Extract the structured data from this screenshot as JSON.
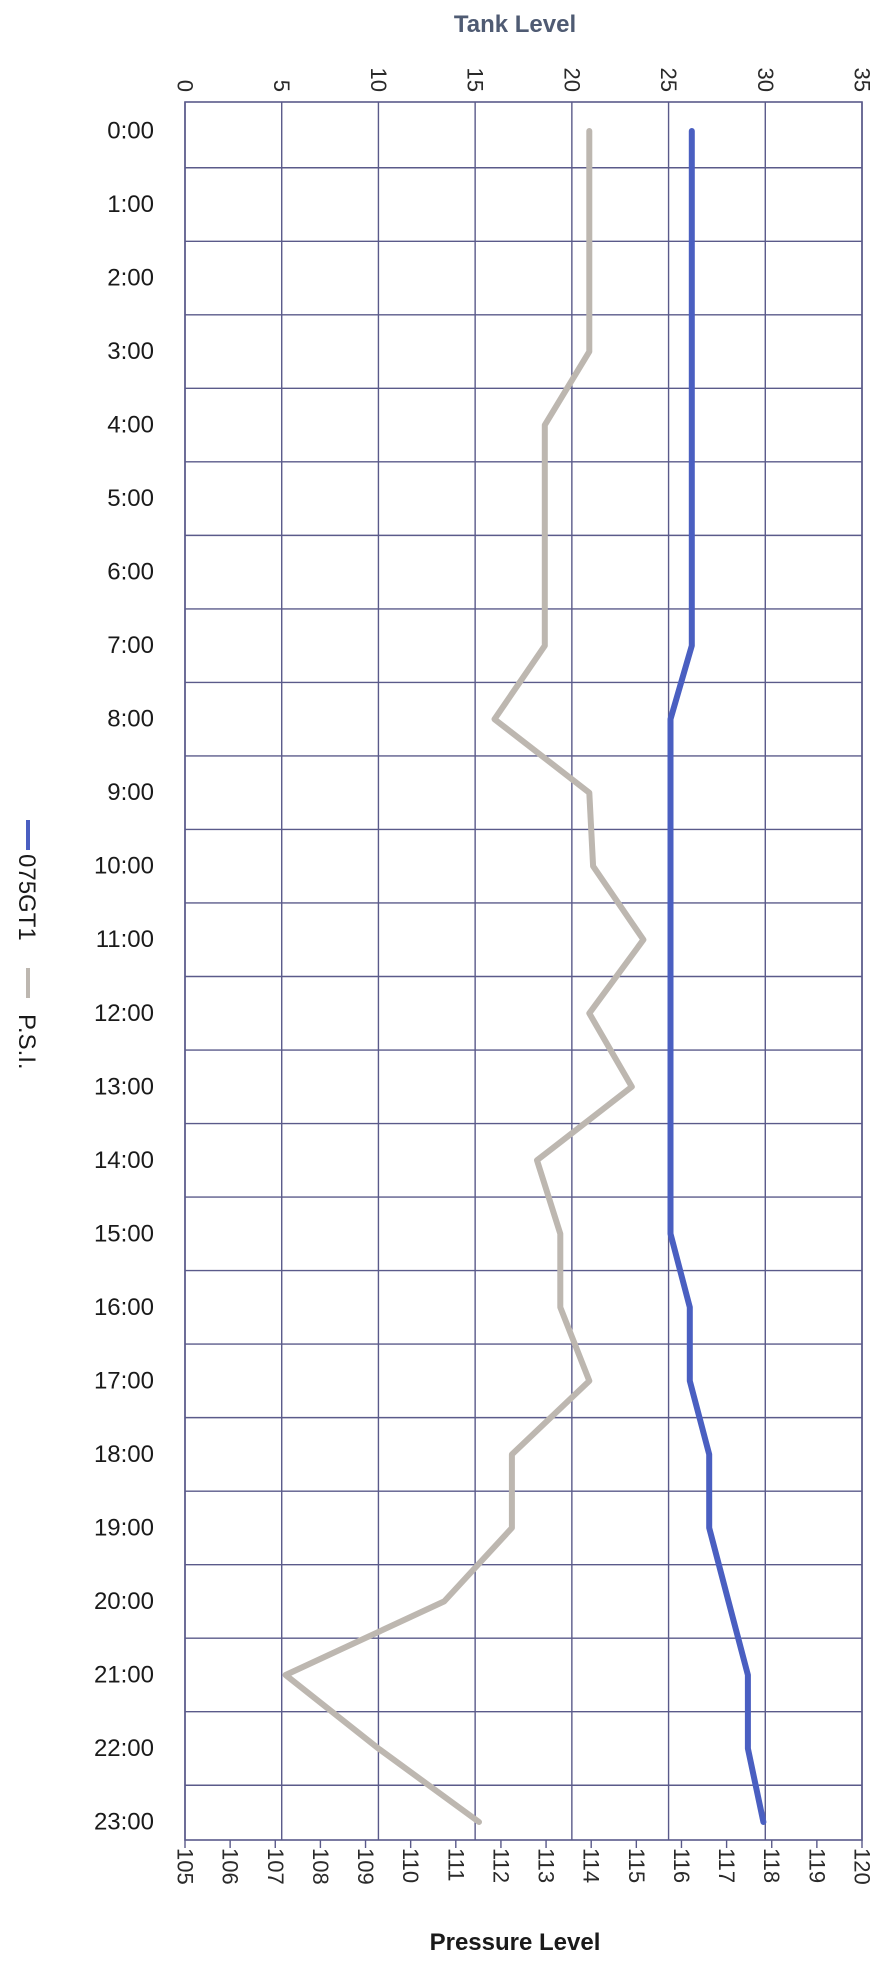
{
  "chart_data": {
    "type": "line",
    "orientation": "rotated",
    "top_axis": {
      "title": "Tank Level",
      "min": 0,
      "max": 35,
      "step": 5
    },
    "bottom_axis": {
      "title": "Pressure Level",
      "min": 105,
      "max": 120,
      "step": 1
    },
    "categories": [
      "0:00",
      "1:00",
      "2:00",
      "3:00",
      "4:00",
      "5:00",
      "6:00",
      "7:00",
      "8:00",
      "9:00",
      "10:00",
      "11:00",
      "12:00",
      "13:00",
      "14:00",
      "15:00",
      "16:00",
      "17:00",
      "18:00",
      "19:00",
      "20:00",
      "21:00",
      "22:00",
      "23:00"
    ],
    "series": [
      {
        "name": "075GT1",
        "axis": "tank",
        "color": "#4a5fc1",
        "values": [
          26.2,
          26.2,
          26.2,
          26.2,
          26.2,
          26.2,
          26.2,
          26.2,
          25.1,
          25.1,
          25.1,
          25.1,
          25.1,
          25.1,
          25.1,
          25.1,
          26.1,
          26.1,
          27.1,
          27.1,
          28.1,
          29.1,
          29.1,
          29.9
        ]
      },
      {
        "name": "P.S.I.",
        "axis": "tank",
        "color": "#bdb7b0",
        "values": [
          20.9,
          20.9,
          20.9,
          20.9,
          18.6,
          18.6,
          18.6,
          18.6,
          16.0,
          20.9,
          21.1,
          23.7,
          20.9,
          23.1,
          18.2,
          19.4,
          19.4,
          20.9,
          16.9,
          16.9,
          13.4,
          5.2,
          10.0,
          15.2
        ]
      }
    ],
    "grid": true,
    "legend": {
      "position": "left",
      "entries": [
        "075GT1",
        "P.S.I."
      ]
    }
  }
}
